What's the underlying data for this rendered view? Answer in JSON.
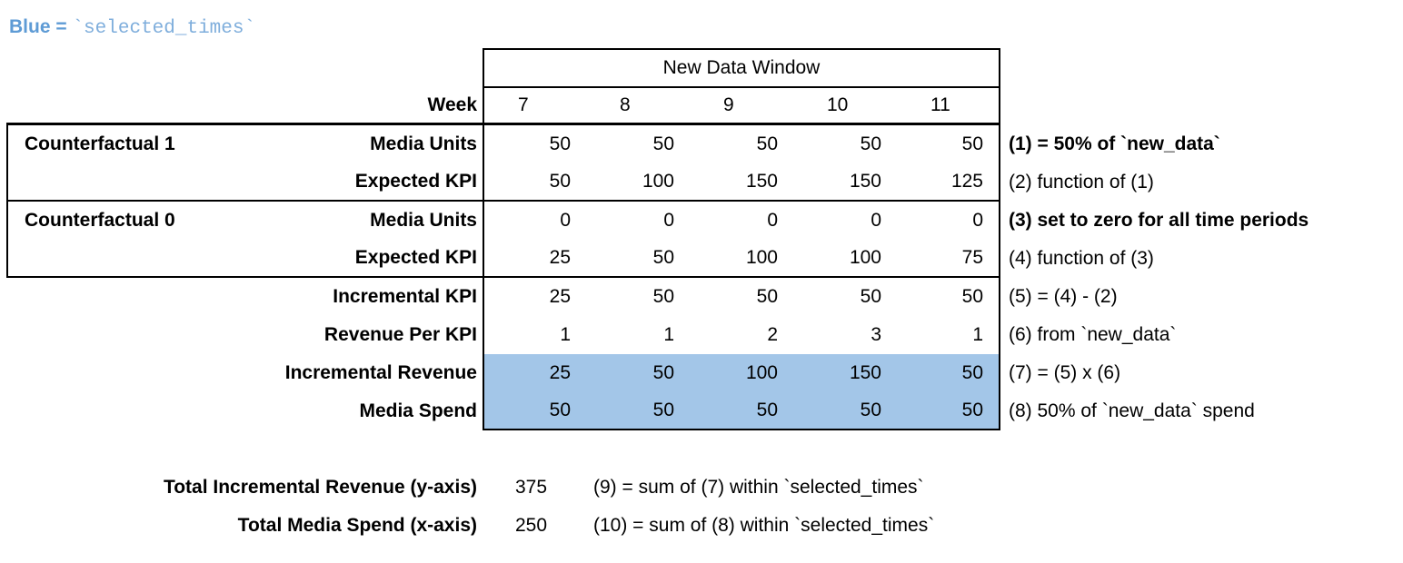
{
  "title": {
    "prefix": "Blue = ",
    "code": "`selected_times`"
  },
  "colors": {
    "highlight": "#A3C6E8",
    "title_bold": "#5E9BD5",
    "title_code": "#7FAEDC"
  },
  "table": {
    "window_header": "New Data Window",
    "week_label": "Week",
    "weeks": [
      "7",
      "8",
      "9",
      "10",
      "11"
    ],
    "rows": [
      {
        "group": "Counterfactual 1",
        "label": "Media Units",
        "values": [
          "50",
          "50",
          "50",
          "50",
          "50"
        ],
        "note": "(1) = 50% of `new_data`"
      },
      {
        "group": "",
        "label": "Expected KPI",
        "values": [
          "50",
          "100",
          "150",
          "150",
          "125"
        ],
        "note": "(2) function of (1)"
      },
      {
        "group": "Counterfactual 0",
        "label": "Media Units",
        "values": [
          "0",
          "0",
          "0",
          "0",
          "0"
        ],
        "note": "(3) set to zero for all time periods"
      },
      {
        "group": "",
        "label": "Expected KPI",
        "values": [
          "25",
          "50",
          "100",
          "100",
          "75"
        ],
        "note": "(4) function of (3)"
      },
      {
        "group": "",
        "label": "Incremental KPI",
        "values": [
          "25",
          "50",
          "50",
          "50",
          "50"
        ],
        "note": "(5) = (4) - (2)"
      },
      {
        "group": "",
        "label": "Revenue Per KPI",
        "values": [
          "1",
          "1",
          "2",
          "3",
          "1"
        ],
        "note": "(6) from `new_data`"
      },
      {
        "group": "",
        "label": "Incremental Revenue",
        "values": [
          "25",
          "50",
          "100",
          "150",
          "50"
        ],
        "note": "(7) = (5) x (6)"
      },
      {
        "group": "",
        "label": "Media Spend",
        "values": [
          "50",
          "50",
          "50",
          "50",
          "50"
        ],
        "note": "(8) 50% of `new_data` spend"
      }
    ]
  },
  "totals": [
    {
      "label": "Total Incremental Revenue (y-axis)",
      "value": "375",
      "note": "(9) = sum of (7) within `selected_times`"
    },
    {
      "label": "Total Media Spend (x-axis)",
      "value": "250",
      "note": "(10) = sum of (8) within `selected_times`"
    }
  ]
}
